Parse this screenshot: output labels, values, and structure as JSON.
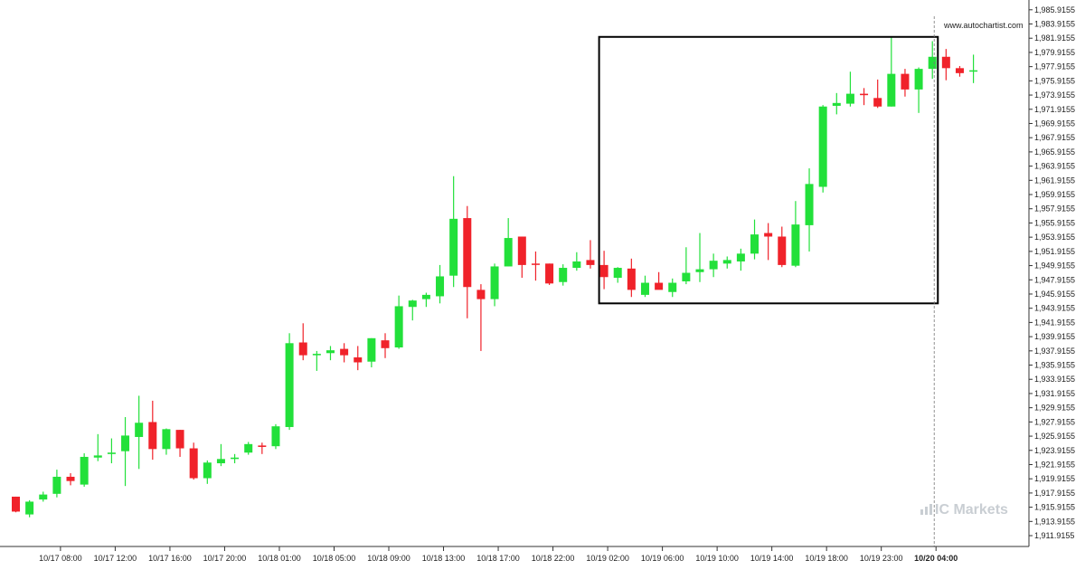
{
  "watermark": {
    "url": "www.autochartist.com",
    "logo": "IC Markets"
  },
  "colors": {
    "up": "#22e03a",
    "down": "#f0222a",
    "wick": "#444444",
    "box": "#000000",
    "axis": "#333333"
  },
  "chart_data": {
    "type": "candlestick",
    "title": "",
    "xlabel": "",
    "ylabel": "",
    "ylim": [
      1910.9,
      1986.4
    ],
    "y_ticks": [
      "1,985.9155",
      "1,983.9155",
      "1,981.9155",
      "1,979.9155",
      "1,977.9155",
      "1,975.9155",
      "1,973.9155",
      "1,971.9155",
      "1,969.9155",
      "1,967.9155",
      "1,965.9155",
      "1,963.9155",
      "1,961.9155",
      "1,959.9155",
      "1,957.9155",
      "1,955.9155",
      "1,953.9155",
      "1,951.9155",
      "1,949.9155",
      "1,947.9155",
      "1,945.9155",
      "1,943.9155",
      "1,941.9155",
      "1,939.9155",
      "1,937.9155",
      "1,935.9155",
      "1,933.9155",
      "1,931.9155",
      "1,929.9155",
      "1,927.9155",
      "1,925.9155",
      "1,923.9155",
      "1,921.9155",
      "1,919.9155",
      "1,917.9155",
      "1,915.9155",
      "1,913.9155",
      "1,911.9155"
    ],
    "x_ticks": [
      {
        "label": "10/17 08:00",
        "index": 3
      },
      {
        "label": "10/17 12:00",
        "index": 7
      },
      {
        "label": "10/17 16:00",
        "index": 11
      },
      {
        "label": "10/17 20:00",
        "index": 15
      },
      {
        "label": "10/18 01:00",
        "index": 19
      },
      {
        "label": "10/18 05:00",
        "index": 23
      },
      {
        "label": "10/18 09:00",
        "index": 27
      },
      {
        "label": "10/18 13:00",
        "index": 31
      },
      {
        "label": "10/18 17:00",
        "index": 35
      },
      {
        "label": "10/18 22:00",
        "index": 39
      },
      {
        "label": "10/19 02:00",
        "index": 43
      },
      {
        "label": "10/19 06:00",
        "index": 47
      },
      {
        "label": "10/19 10:00",
        "index": 51
      },
      {
        "label": "10/19 14:00",
        "index": 55
      },
      {
        "label": "10/19 18:00",
        "index": 59
      },
      {
        "label": "10/19 23:00",
        "index": 63
      },
      {
        "label": "10/20 04:00",
        "index": 67,
        "bold": true
      }
    ],
    "candles": [
      {
        "o": 1917.4,
        "h": 1917.4,
        "l": 1915.2,
        "c": 1915.3
      },
      {
        "o": 1914.9,
        "h": 1916.9,
        "l": 1914.5,
        "c": 1916.7
      },
      {
        "o": 1917.0,
        "h": 1918.1,
        "l": 1916.7,
        "c": 1917.7
      },
      {
        "o": 1917.8,
        "h": 1921.2,
        "l": 1917.3,
        "c": 1920.2
      },
      {
        "o": 1920.2,
        "h": 1920.7,
        "l": 1919.0,
        "c": 1919.6
      },
      {
        "o": 1919.1,
        "h": 1923.5,
        "l": 1918.8,
        "c": 1923.0
      },
      {
        "o": 1922.9,
        "h": 1926.2,
        "l": 1922.4,
        "c": 1923.2
      },
      {
        "o": 1923.4,
        "h": 1925.6,
        "l": 1922.1,
        "c": 1923.6
      },
      {
        "o": 1923.8,
        "h": 1928.6,
        "l": 1918.9,
        "c": 1926.0
      },
      {
        "o": 1925.8,
        "h": 1931.6,
        "l": 1921.3,
        "c": 1927.8
      },
      {
        "o": 1927.9,
        "h": 1930.9,
        "l": 1922.6,
        "c": 1924.1
      },
      {
        "o": 1924.1,
        "h": 1927.0,
        "l": 1923.3,
        "c": 1926.9
      },
      {
        "o": 1926.8,
        "h": 1926.8,
        "l": 1923.0,
        "c": 1924.2
      },
      {
        "o": 1924.2,
        "h": 1925.0,
        "l": 1919.8,
        "c": 1920.0
      },
      {
        "o": 1920.0,
        "h": 1922.5,
        "l": 1919.2,
        "c": 1922.2
      },
      {
        "o": 1922.1,
        "h": 1924.8,
        "l": 1921.7,
        "c": 1922.7
      },
      {
        "o": 1922.7,
        "h": 1923.4,
        "l": 1922.1,
        "c": 1922.9
      },
      {
        "o": 1923.6,
        "h": 1925.1,
        "l": 1923.3,
        "c": 1924.8
      },
      {
        "o": 1924.6,
        "h": 1925.0,
        "l": 1923.4,
        "c": 1924.4
      },
      {
        "o": 1924.5,
        "h": 1927.6,
        "l": 1924.1,
        "c": 1927.3
      },
      {
        "o": 1927.2,
        "h": 1940.4,
        "l": 1926.8,
        "c": 1939.0
      },
      {
        "o": 1939.1,
        "h": 1941.8,
        "l": 1936.6,
        "c": 1937.3
      },
      {
        "o": 1937.3,
        "h": 1937.9,
        "l": 1935.1,
        "c": 1937.5
      },
      {
        "o": 1937.6,
        "h": 1938.6,
        "l": 1936.6,
        "c": 1938.0
      },
      {
        "o": 1938.2,
        "h": 1939.0,
        "l": 1936.3,
        "c": 1937.3
      },
      {
        "o": 1937.0,
        "h": 1938.6,
        "l": 1935.2,
        "c": 1936.3
      },
      {
        "o": 1936.4,
        "h": 1939.7,
        "l": 1935.6,
        "c": 1939.7
      },
      {
        "o": 1939.4,
        "h": 1940.4,
        "l": 1936.9,
        "c": 1938.3
      },
      {
        "o": 1938.4,
        "h": 1945.7,
        "l": 1938.2,
        "c": 1944.2
      },
      {
        "o": 1944.1,
        "h": 1945.1,
        "l": 1942.2,
        "c": 1945.0
      },
      {
        "o": 1945.2,
        "h": 1946.1,
        "l": 1944.1,
        "c": 1945.8
      },
      {
        "o": 1945.6,
        "h": 1950.0,
        "l": 1944.6,
        "c": 1948.4
      },
      {
        "o": 1948.5,
        "h": 1962.5,
        "l": 1946.9,
        "c": 1956.5
      },
      {
        "o": 1956.6,
        "h": 1958.3,
        "l": 1942.5,
        "c": 1946.9
      },
      {
        "o": 1946.5,
        "h": 1947.3,
        "l": 1937.9,
        "c": 1945.2
      },
      {
        "o": 1945.2,
        "h": 1950.2,
        "l": 1944.2,
        "c": 1949.8
      },
      {
        "o": 1949.8,
        "h": 1956.6,
        "l": 1949.8,
        "c": 1953.8
      },
      {
        "o": 1954.0,
        "h": 1954.0,
        "l": 1948.2,
        "c": 1950.0
      },
      {
        "o": 1950.2,
        "h": 1951.9,
        "l": 1947.8,
        "c": 1950.1
      },
      {
        "o": 1950.2,
        "h": 1950.2,
        "l": 1947.2,
        "c": 1947.4
      },
      {
        "o": 1947.6,
        "h": 1950.1,
        "l": 1947.1,
        "c": 1949.6
      },
      {
        "o": 1949.6,
        "h": 1951.8,
        "l": 1949.2,
        "c": 1950.5
      },
      {
        "o": 1950.7,
        "h": 1953.5,
        "l": 1949.5,
        "c": 1950.0
      },
      {
        "o": 1950.0,
        "h": 1952.0,
        "l": 1946.6,
        "c": 1948.3
      },
      {
        "o": 1948.2,
        "h": 1949.7,
        "l": 1947.5,
        "c": 1949.6
      },
      {
        "o": 1949.5,
        "h": 1950.9,
        "l": 1945.5,
        "c": 1946.5
      },
      {
        "o": 1945.8,
        "h": 1948.5,
        "l": 1945.5,
        "c": 1947.5
      },
      {
        "o": 1947.5,
        "h": 1949.0,
        "l": 1946.6,
        "c": 1946.5
      },
      {
        "o": 1946.2,
        "h": 1948.1,
        "l": 1945.5,
        "c": 1947.5
      },
      {
        "o": 1947.7,
        "h": 1952.5,
        "l": 1947.3,
        "c": 1948.9
      },
      {
        "o": 1949.0,
        "h": 1954.5,
        "l": 1947.6,
        "c": 1949.4
      },
      {
        "o": 1949.4,
        "h": 1951.6,
        "l": 1948.3,
        "c": 1950.6
      },
      {
        "o": 1950.2,
        "h": 1951.2,
        "l": 1949.5,
        "c": 1950.7
      },
      {
        "o": 1950.5,
        "h": 1952.3,
        "l": 1949.2,
        "c": 1951.6
      },
      {
        "o": 1951.6,
        "h": 1956.4,
        "l": 1950.8,
        "c": 1954.3
      },
      {
        "o": 1954.5,
        "h": 1955.9,
        "l": 1950.7,
        "c": 1954.0
      },
      {
        "o": 1954.0,
        "h": 1955.4,
        "l": 1949.7,
        "c": 1950.0
      },
      {
        "o": 1949.9,
        "h": 1959.0,
        "l": 1949.7,
        "c": 1955.7
      },
      {
        "o": 1955.6,
        "h": 1963.6,
        "l": 1951.9,
        "c": 1961.4
      },
      {
        "o": 1961.0,
        "h": 1972.5,
        "l": 1960.2,
        "c": 1972.3
      },
      {
        "o": 1972.4,
        "h": 1974.2,
        "l": 1971.2,
        "c": 1972.8
      },
      {
        "o": 1972.7,
        "h": 1977.2,
        "l": 1972.3,
        "c": 1974.1
      },
      {
        "o": 1974.1,
        "h": 1974.9,
        "l": 1972.5,
        "c": 1973.9
      },
      {
        "o": 1973.5,
        "h": 1976.1,
        "l": 1972.1,
        "c": 1972.3
      },
      {
        "o": 1972.3,
        "h": 1982.0,
        "l": 1972.3,
        "c": 1976.9
      },
      {
        "o": 1976.9,
        "h": 1977.6,
        "l": 1973.7,
        "c": 1974.7
      },
      {
        "o": 1974.7,
        "h": 1977.8,
        "l": 1971.4,
        "c": 1977.6
      },
      {
        "o": 1977.6,
        "h": 1981.5,
        "l": 1976.2,
        "c": 1979.3
      },
      {
        "o": 1979.3,
        "h": 1980.4,
        "l": 1976.0,
        "c": 1977.7
      },
      {
        "o": 1977.7,
        "h": 1978.0,
        "l": 1976.5,
        "c": 1977.0
      },
      {
        "o": 1977.3,
        "h": 1979.6,
        "l": 1975.6,
        "c": 1977.4
      }
    ],
    "pattern_box": {
      "from_index": 43,
      "to_index": 67.4,
      "price_high": 1982.1,
      "price_low": 1944.6
    },
    "current_index": 67,
    "grid": false,
    "legend": "none"
  }
}
